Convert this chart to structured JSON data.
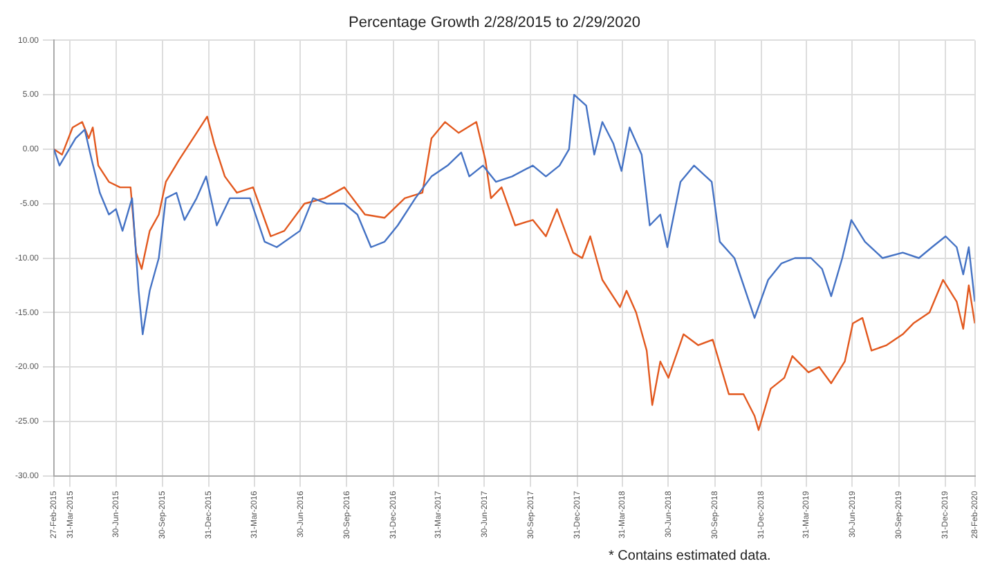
{
  "chart_data": {
    "type": "line",
    "title": "Percentage Growth 2/28/2015 to 2/29/2020",
    "series": [
      {
        "color": "#4472c4",
        "x": [
          "2015-02-27",
          "2015-03-10",
          "2015-04-11",
          "2015-04-29",
          "2015-05-13",
          "2015-05-29",
          "2015-06-16",
          "2015-06-30",
          "2015-07-13",
          "2015-08-01",
          "2015-08-14",
          "2015-08-22",
          "2015-09-05",
          "2015-09-23",
          "2015-10-07",
          "2015-10-28",
          "2015-11-13",
          "2015-12-07",
          "2015-12-26",
          "2016-01-16",
          "2016-02-11",
          "2016-03-22",
          "2016-04-20",
          "2016-05-14",
          "2016-06-29",
          "2016-07-25",
          "2016-08-21",
          "2016-09-25",
          "2016-10-21",
          "2016-11-17",
          "2016-12-14",
          "2017-01-09",
          "2017-02-13",
          "2017-03-17",
          "2017-04-18",
          "2017-05-15",
          "2017-05-31",
          "2017-06-27",
          "2017-07-23",
          "2017-08-24",
          "2017-10-04",
          "2017-10-30",
          "2017-11-26",
          "2017-12-15",
          "2017-12-25",
          "2018-01-18",
          "2018-02-03",
          "2018-02-19",
          "2018-03-13",
          "2018-03-29",
          "2018-04-14",
          "2018-05-08",
          "2018-05-24",
          "2018-06-14",
          "2018-06-28",
          "2018-07-24",
          "2018-08-20",
          "2018-09-24",
          "2018-10-10",
          "2018-11-08",
          "2018-12-18",
          "2019-01-14",
          "2019-02-09",
          "2019-03-08",
          "2019-04-09",
          "2019-05-01",
          "2019-05-19",
          "2019-06-10",
          "2019-06-28",
          "2019-07-25",
          "2019-08-29",
          "2019-10-08",
          "2019-11-09",
          "2019-12-05",
          "2020-01-01",
          "2020-01-23",
          "2020-02-05",
          "2020-02-16",
          "2020-02-28"
        ],
        "values": [
          0,
          -1.5,
          1,
          1.8,
          -1,
          -4,
          -6,
          -5.5,
          -7.5,
          -4.5,
          -13,
          -17,
          -13,
          -10,
          -4.5,
          -4,
          -6.5,
          -4.5,
          -2.5,
          -7,
          -4.5,
          -4.5,
          -8.5,
          -9,
          -7.5,
          -4.5,
          -5,
          -5,
          -6,
          -9,
          -8.5,
          -7,
          -4.5,
          -2.5,
          -1.5,
          -0.3,
          -2.5,
          -1.5,
          -3,
          -2.5,
          -1.5,
          -2.5,
          -1.5,
          0,
          5,
          4,
          -0.5,
          2.5,
          0.5,
          -2,
          2,
          -0.5,
          -7,
          -6,
          -9,
          -3,
          -1.5,
          -3,
          -8.5,
          -10,
          -15.5,
          -12,
          -10.5,
          -10,
          -10,
          -11,
          -13.5,
          -10,
          -6.5,
          -8.5,
          -10,
          -9.5,
          -10,
          -9,
          -8,
          -9,
          -11.5,
          -9,
          -14
        ]
      },
      {
        "color": "#e2581e",
        "x": [
          "2015-02-27",
          "2015-03-15",
          "2015-04-05",
          "2015-04-24",
          "2015-05-07",
          "2015-05-15",
          "2015-05-26",
          "2015-06-16",
          "2015-07-08",
          "2015-07-29",
          "2015-08-09",
          "2015-08-20",
          "2015-09-05",
          "2015-09-23",
          "2015-10-07",
          "2015-11-02",
          "2015-12-07",
          "2015-12-28",
          "2016-01-11",
          "2016-02-01",
          "2016-02-25",
          "2016-03-28",
          "2016-05-02",
          "2016-05-29",
          "2016-07-08",
          "2016-08-17",
          "2016-09-25",
          "2016-11-05",
          "2016-12-14",
          "2017-01-23",
          "2017-02-27",
          "2017-03-17",
          "2017-04-13",
          "2017-05-10",
          "2017-06-14",
          "2017-07-02",
          "2017-07-13",
          "2017-08-03",
          "2017-08-30",
          "2017-10-04",
          "2017-10-30",
          "2017-11-21",
          "2017-12-23",
          "2018-01-10",
          "2018-01-26",
          "2018-02-19",
          "2018-03-26",
          "2018-04-08",
          "2018-04-27",
          "2018-05-18",
          "2018-05-29",
          "2018-06-14",
          "2018-06-30",
          "2018-07-30",
          "2018-08-28",
          "2018-09-26",
          "2018-10-12",
          "2018-10-28",
          "2018-11-26",
          "2018-12-18",
          "2018-12-26",
          "2019-01-19",
          "2019-02-15",
          "2019-03-03",
          "2019-04-04",
          "2019-04-25",
          "2019-05-19",
          "2019-06-15",
          "2019-07-01",
          "2019-07-20",
          "2019-08-07",
          "2019-09-06",
          "2019-10-08",
          "2019-10-29",
          "2019-11-30",
          "2019-12-27",
          "2020-01-23",
          "2020-02-05",
          "2020-02-16",
          "2020-02-28"
        ],
        "values": [
          0,
          -0.5,
          2,
          2.5,
          1,
          2,
          -1.5,
          -3,
          -3.5,
          -3.5,
          -9.5,
          -11,
          -7.5,
          -6,
          -3,
          -1,
          1.5,
          3,
          0.5,
          -2.5,
          -4,
          -3.5,
          -8,
          -7.5,
          -5,
          -4.5,
          -3.5,
          -6,
          -6.3,
          -4.5,
          -4,
          1,
          2.5,
          1.5,
          2.5,
          -1,
          -4.5,
          -3.5,
          -7,
          -6.5,
          -8,
          -5.5,
          -9.5,
          -10,
          -8,
          -12,
          -14.5,
          -13,
          -15,
          -18.5,
          -23.5,
          -19.5,
          -21,
          -17,
          -18,
          -17.5,
          -20,
          -22.5,
          -22.5,
          -24.5,
          -25.8,
          -22,
          -21,
          -19,
          -20.5,
          -20,
          -21.5,
          -19.5,
          -16,
          -15.5,
          -18.5,
          -18,
          -17,
          -16,
          -15,
          -12,
          -14,
          -16.5,
          -12.5,
          -16
        ]
      }
    ],
    "xlim": [
      "2015-02-27",
      "2020-02-28"
    ],
    "xticks": [
      {
        "value": "2015-02-27",
        "label": "27-Feb-2015"
      },
      {
        "value": "2015-03-31",
        "label": "31-Mar-2015"
      },
      {
        "value": "2015-06-30",
        "label": "30-Jun-2015"
      },
      {
        "value": "2015-09-30",
        "label": "30-Sep-2015"
      },
      {
        "value": "2015-12-31",
        "label": "31-Dec-2015"
      },
      {
        "value": "2016-03-31",
        "label": "31-Mar-2016"
      },
      {
        "value": "2016-06-30",
        "label": "30-Jun-2016"
      },
      {
        "value": "2016-09-30",
        "label": "30-Sep-2016"
      },
      {
        "value": "2016-12-31",
        "label": "31-Dec-2016"
      },
      {
        "value": "2017-03-31",
        "label": "31-Mar-2017"
      },
      {
        "value": "2017-06-30",
        "label": "30-Jun-2017"
      },
      {
        "value": "2017-09-30",
        "label": "30-Sep-2017"
      },
      {
        "value": "2017-12-31",
        "label": "31-Dec-2017"
      },
      {
        "value": "2018-03-31",
        "label": "31-Mar-2018"
      },
      {
        "value": "2018-06-30",
        "label": "30-Jun-2018"
      },
      {
        "value": "2018-09-30",
        "label": "30-Sep-2018"
      },
      {
        "value": "2018-12-31",
        "label": "31-Dec-2018"
      },
      {
        "value": "2019-03-31",
        "label": "31-Mar-2019"
      },
      {
        "value": "2019-06-30",
        "label": "30-Jun-2019"
      },
      {
        "value": "2019-09-30",
        "label": "30-Sep-2019"
      },
      {
        "value": "2019-12-31",
        "label": "31-Dec-2019"
      },
      {
        "value": "2020-02-28",
        "label": "28-Feb-2020"
      }
    ],
    "ylim": [
      -30,
      10
    ],
    "yticks": [
      {
        "value": 10,
        "label": "10.00"
      },
      {
        "value": 5,
        "label": "5.00"
      },
      {
        "value": 0,
        "label": "0.00"
      },
      {
        "value": -5,
        "label": "-5.00"
      },
      {
        "value": -10,
        "label": "-10.00"
      },
      {
        "value": -15,
        "label": "-15.00"
      },
      {
        "value": -20,
        "label": "-20.00"
      },
      {
        "value": -25,
        "label": "-25.00"
      },
      {
        "value": -30,
        "label": "-30.00"
      }
    ],
    "grid": true,
    "marker": "none",
    "line_style": "solid",
    "annotations": [
      "* Contains estimated data."
    ]
  }
}
